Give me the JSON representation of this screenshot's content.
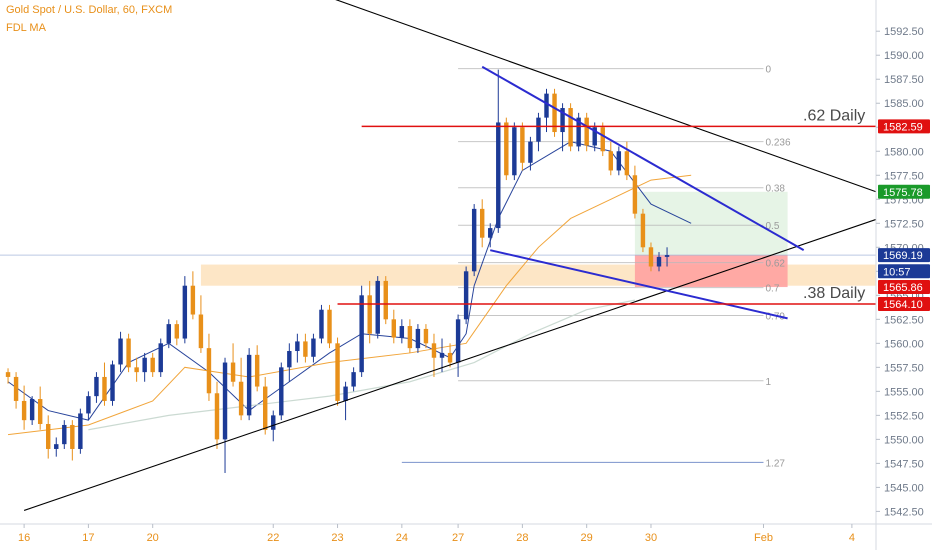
{
  "header": {
    "title": "Gold Spot / U.S. Dollar, 60, FXCM",
    "study": "FDL MA"
  },
  "colors": {
    "up": "#1c3a96",
    "down": "#e8901a",
    "ma_fast": "#1c3a96",
    "ma_mid": "#f0a030",
    "ma_slow": "#c8d8d0",
    "trend": "#000000",
    "wedge": "#2b2bd0",
    "level": "#e01010",
    "tp_zone": "#e6f4e6",
    "sl_zone": "#ff9d9d",
    "support_zone": "#fde3c0"
  },
  "chart_data": {
    "type": "candlestick",
    "y_range": [
      1541.5,
      1594.5
    ],
    "x_range": [
      -1,
      108
    ],
    "y_ticks": [
      "1592.50",
      "1590.00",
      "1587.50",
      "1585.00",
      "1582.50",
      "1580.00",
      "1577.50",
      "1575.00",
      "1572.50",
      "1570.00",
      "1567.50",
      "1565.00",
      "1562.50",
      "1560.00",
      "1557.50",
      "1555.00",
      "1552.50",
      "1550.00",
      "1547.50",
      "1545.00",
      "1542.50"
    ],
    "x_ticks": [
      {
        "label": "16",
        "x": 2
      },
      {
        "label": "17",
        "x": 10
      },
      {
        "label": "20",
        "x": 18
      },
      {
        "label": "22",
        "x": 33
      },
      {
        "label": "23",
        "x": 41
      },
      {
        "label": "24",
        "x": 49
      },
      {
        "label": "27",
        "x": 56
      },
      {
        "label": "28",
        "x": 64
      },
      {
        "label": "29",
        "x": 72
      },
      {
        "label": "30",
        "x": 80
      },
      {
        "label": "Feb",
        "x": 94
      },
      {
        "label": "4",
        "x": 105
      }
    ],
    "candles": [
      [
        1557.0,
        1557.4,
        1555.8,
        1556.5
      ],
      [
        1556.5,
        1557.0,
        1553.2,
        1554.0
      ],
      [
        1554.0,
        1555.6,
        1551.0,
        1552.0
      ],
      [
        1552.0,
        1554.5,
        1551.5,
        1554.2
      ],
      [
        1554.2,
        1555.5,
        1551.0,
        1551.6
      ],
      [
        1551.6,
        1552.5,
        1548.0,
        1549.0
      ],
      [
        1549.0,
        1550.2,
        1548.2,
        1549.5
      ],
      [
        1549.5,
        1552.0,
        1549.0,
        1551.5
      ],
      [
        1551.5,
        1552.0,
        1547.8,
        1549.0
      ],
      [
        1549.0,
        1553.2,
        1548.5,
        1552.7
      ],
      [
        1552.7,
        1555.0,
        1552.0,
        1554.5
      ],
      [
        1554.5,
        1557.0,
        1553.8,
        1556.5
      ],
      [
        1556.5,
        1558.0,
        1553.5,
        1554.0
      ],
      [
        1554.0,
        1558.2,
        1553.5,
        1557.8
      ],
      [
        1557.8,
        1561.2,
        1557.0,
        1560.5
      ],
      [
        1560.5,
        1561.0,
        1557.0,
        1557.5
      ],
      [
        1557.5,
        1558.5,
        1556.0,
        1557.0
      ],
      [
        1557.0,
        1559.0,
        1556.0,
        1558.5
      ],
      [
        1558.5,
        1559.0,
        1556.5,
        1557.0
      ],
      [
        1557.0,
        1560.5,
        1556.5,
        1560.0
      ],
      [
        1560.0,
        1562.5,
        1559.5,
        1562.0
      ],
      [
        1562.0,
        1562.4,
        1559.8,
        1560.5
      ],
      [
        1560.5,
        1567.0,
        1560.0,
        1566.0
      ],
      [
        1566.0,
        1567.5,
        1562.5,
        1563.0
      ],
      [
        1563.0,
        1565.0,
        1559.0,
        1559.5
      ],
      [
        1559.5,
        1561.0,
        1554.0,
        1554.8
      ],
      [
        1554.8,
        1556.0,
        1549.0,
        1550.0
      ],
      [
        1550.0,
        1558.5,
        1546.5,
        1558.0
      ],
      [
        1558.0,
        1560.0,
        1555.5,
        1556.0
      ],
      [
        1556.0,
        1558.5,
        1552.0,
        1552.5
      ],
      [
        1552.5,
        1559.5,
        1552.0,
        1558.8
      ],
      [
        1558.8,
        1559.8,
        1555.0,
        1555.5
      ],
      [
        1555.5,
        1556.5,
        1550.5,
        1551.0
      ],
      [
        1551.0,
        1553.0,
        1549.8,
        1552.5
      ],
      [
        1552.5,
        1558.0,
        1552.0,
        1557.5
      ],
      [
        1557.5,
        1560.0,
        1556.0,
        1559.2
      ],
      [
        1559.2,
        1561.0,
        1558.0,
        1560.2
      ],
      [
        1560.2,
        1561.0,
        1558.0,
        1558.6
      ],
      [
        1558.6,
        1561.0,
        1558.0,
        1560.5
      ],
      [
        1560.5,
        1564.0,
        1560.0,
        1563.5
      ],
      [
        1563.5,
        1564.0,
        1559.5,
        1560.0
      ],
      [
        1560.0,
        1560.6,
        1553.5,
        1554.0
      ],
      [
        1554.0,
        1556.0,
        1552.0,
        1555.5
      ],
      [
        1555.5,
        1557.5,
        1555.0,
        1557.0
      ],
      [
        1557.0,
        1566.0,
        1556.5,
        1565.0
      ],
      [
        1565.0,
        1566.5,
        1560.0,
        1561.0
      ],
      [
        1561.0,
        1567.0,
        1560.5,
        1566.5
      ],
      [
        1566.5,
        1567.0,
        1562.0,
        1562.5
      ],
      [
        1562.5,
        1563.5,
        1560.0,
        1560.6
      ],
      [
        1560.6,
        1562.5,
        1560.0,
        1561.8
      ],
      [
        1561.8,
        1562.5,
        1559.0,
        1559.5
      ],
      [
        1559.5,
        1562.0,
        1559.0,
        1561.5
      ],
      [
        1561.5,
        1562.0,
        1559.5,
        1560.0
      ],
      [
        1560.0,
        1561.0,
        1556.5,
        1558.5
      ],
      [
        1558.5,
        1560.5,
        1557.0,
        1559.0
      ],
      [
        1559.0,
        1560.0,
        1557.5,
        1558.0
      ],
      [
        1558.0,
        1563.0,
        1556.5,
        1562.5
      ],
      [
        1562.5,
        1568.0,
        1562.0,
        1567.5
      ],
      [
        1567.5,
        1574.5,
        1567.0,
        1574.0
      ],
      [
        1574.0,
        1575.0,
        1570.0,
        1571.0
      ],
      [
        1571.0,
        1572.5,
        1570.0,
        1572.0
      ],
      [
        1572.0,
        1588.5,
        1571.5,
        1583.0
      ],
      [
        1583.0,
        1583.5,
        1577.0,
        1577.5
      ],
      [
        1577.5,
        1583.0,
        1577.0,
        1582.5
      ],
      [
        1582.5,
        1583.0,
        1578.0,
        1578.8
      ],
      [
        1578.8,
        1581.5,
        1578.0,
        1581.0
      ],
      [
        1581.0,
        1584.0,
        1580.0,
        1583.5
      ],
      [
        1583.5,
        1586.5,
        1582.0,
        1586.0
      ],
      [
        1586.0,
        1586.5,
        1581.5,
        1582.0
      ],
      [
        1582.0,
        1585.0,
        1580.0,
        1584.5
      ],
      [
        1584.5,
        1585.0,
        1580.0,
        1580.5
      ],
      [
        1580.5,
        1584.0,
        1580.0,
        1583.5
      ],
      [
        1583.5,
        1584.0,
        1580.0,
        1580.6
      ],
      [
        1580.6,
        1583.0,
        1580.0,
        1582.5
      ],
      [
        1582.5,
        1583.0,
        1579.5,
        1580.0
      ],
      [
        1580.0,
        1581.0,
        1577.5,
        1578.0
      ],
      [
        1578.0,
        1580.5,
        1577.5,
        1580.0
      ],
      [
        1580.0,
        1581.0,
        1577.0,
        1577.5
      ],
      [
        1577.5,
        1578.5,
        1573.0,
        1573.5
      ],
      [
        1573.5,
        1574.0,
        1569.5,
        1570.0
      ],
      [
        1570.0,
        1570.5,
        1567.5,
        1568.0
      ],
      [
        1568.0,
        1569.5,
        1567.5,
        1569.0
      ],
      [
        1569.0,
        1570.0,
        1568.0,
        1569.19
      ]
    ],
    "moving_averages": [
      {
        "name": "fast",
        "points": [
          [
            0,
            1556.0
          ],
          [
            5,
            1553.0
          ],
          [
            10,
            1552.0
          ],
          [
            15,
            1558.0
          ],
          [
            20,
            1560.0
          ],
          [
            25,
            1557.0
          ],
          [
            30,
            1553.0
          ],
          [
            35,
            1556.0
          ],
          [
            40,
            1559.0
          ],
          [
            44,
            1561.0
          ],
          [
            50,
            1560.5
          ],
          [
            55,
            1558.5
          ],
          [
            57,
            1561.0
          ],
          [
            58,
            1566.0
          ],
          [
            61,
            1573.0
          ],
          [
            64,
            1578.0
          ],
          [
            70,
            1581.0
          ],
          [
            75,
            1580.0
          ],
          [
            80,
            1574.5
          ],
          [
            85,
            1572.5
          ]
        ]
      },
      {
        "name": "mid",
        "points": [
          [
            0,
            1550.5
          ],
          [
            10,
            1551.5
          ],
          [
            18,
            1554.0
          ],
          [
            22,
            1557.5
          ],
          [
            30,
            1556.5
          ],
          [
            40,
            1558.0
          ],
          [
            50,
            1559.0
          ],
          [
            57,
            1560.0
          ],
          [
            62,
            1566.0
          ],
          [
            66,
            1570.0
          ],
          [
            70,
            1573.0
          ],
          [
            75,
            1575.0
          ],
          [
            80,
            1577.0
          ],
          [
            85,
            1577.5
          ]
        ]
      },
      {
        "name": "slow",
        "points": [
          [
            10,
            1551.0
          ],
          [
            20,
            1552.5
          ],
          [
            30,
            1553.5
          ],
          [
            40,
            1554.5
          ],
          [
            50,
            1556.0
          ],
          [
            58,
            1558.0
          ],
          [
            65,
            1561.0
          ],
          [
            72,
            1563.5
          ],
          [
            78,
            1564.5
          ]
        ]
      }
    ],
    "trendlines": [
      {
        "name": "upper-trend",
        "from": [
          30,
          1599.0
        ],
        "to": [
          108,
          1575.78
        ]
      },
      {
        "name": "lower-trend",
        "from": [
          2,
          1542.6
        ],
        "to": [
          108,
          1572.9
        ]
      },
      {
        "name": "wedge-top",
        "from": [
          59,
          1588.8
        ],
        "to": [
          99,
          1569.7
        ]
      },
      {
        "name": "wedge-bottom",
        "from": [
          60,
          1569.7
        ],
        "to": [
          97,
          1562.6
        ]
      }
    ],
    "fib_levels": [
      {
        "label": "0",
        "y": 1588.6
      },
      {
        "label": "0.236",
        "y": 1581.0
      },
      {
        "label": "0.38",
        "y": 1576.2
      },
      {
        "label": "0.5",
        "y": 1572.3
      },
      {
        "label": "0.62",
        "y": 1568.4
      },
      {
        "label": "0.7",
        "y": 1565.8
      },
      {
        "label": "0.79",
        "y": 1562.9
      },
      {
        "label": "1",
        "y": 1556.1
      },
      {
        "label": "1.27",
        "y": 1547.6
      }
    ],
    "fib_x_range": [
      56,
      94
    ],
    "levels": [
      {
        "label": ".62 Daily",
        "value": 1582.59,
        "x_from": 44
      },
      {
        "label": ".38 Daily",
        "value": 1564.1,
        "x_from": 41
      }
    ],
    "support_zone": {
      "x_from": 24,
      "x_to": 108,
      "y_from": 1566.0,
      "y_to": 1568.2
    },
    "position": {
      "x_from": 78,
      "x_to": 97,
      "entry": 1569.19,
      "target": 1575.78,
      "stop": 1565.86
    },
    "price_badges": [
      {
        "value": "1582.59",
        "y": 1582.59,
        "color": "#e01010"
      },
      {
        "value": "1575.78",
        "y": 1575.78,
        "color": "#1a9a2a"
      },
      {
        "value": "1569.19",
        "y": 1569.19,
        "color": "#1c3a96"
      },
      {
        "value": "10:57",
        "y": 1567.5,
        "color": "#1c3a96"
      },
      {
        "value": "1565.86",
        "y": 1565.86,
        "color": "#e01010"
      },
      {
        "value": "1564.10",
        "y": 1564.1,
        "color": "#e01010"
      }
    ],
    "current_price": 1569.19
  }
}
